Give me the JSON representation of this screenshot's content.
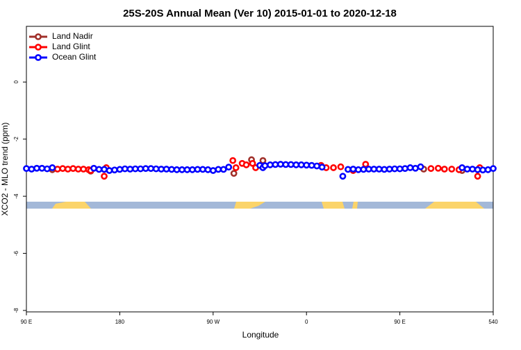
{
  "chart_data": {
    "type": "scatter",
    "title": "25S-20S Annual Mean (Ver 10)   2015-01-01 to 2020-12-18",
    "x_label": "Longitude",
    "y_label": "XCO2 - MLO trend (ppm)",
    "xlim": [
      90,
      540
    ],
    "xticks": [
      {
        "value": 90,
        "label": "90 E"
      },
      180,
      {
        "value": 270,
        "label": "90 W"
      },
      {
        "value": 360,
        "label": "0"
      },
      {
        "value": 450,
        "label": "90 E"
      },
      540
    ],
    "ylim": [
      -8.05,
      1.95
    ],
    "yticks": [
      0,
      -2,
      -4,
      -6,
      -8
    ],
    "legend": "top-left",
    "series": [
      {
        "name": "Land Nadir",
        "color": "#a0302a",
        "x": [
          115,
          152,
          290,
          307,
          318,
          473,
          510
        ],
        "values": [
          -3.07,
          -3.12,
          -3.2,
          -2.72,
          -2.75,
          -3.05,
          -3.1
        ]
      },
      {
        "name": "Land Glint",
        "color": "#ff0000",
        "x": [
          120,
          125,
          130,
          135,
          140,
          145,
          150,
          152,
          165,
          167,
          289,
          292,
          298,
          302,
          308,
          311,
          374,
          379,
          386,
          393,
          405,
          417,
          480,
          487,
          493,
          500,
          507,
          525,
          527
        ],
        "values": [
          -3.05,
          -3.03,
          -3.05,
          -3.03,
          -3.05,
          -3.05,
          -3.07,
          -3.1,
          -3.3,
          -3.0,
          -2.75,
          -3.0,
          -2.85,
          -2.9,
          -2.85,
          -3.0,
          -2.92,
          -3.0,
          -3.0,
          -2.97,
          -3.1,
          -2.88,
          -3.03,
          -3.02,
          -3.05,
          -3.05,
          -3.07,
          -3.3,
          -3.0
        ]
      },
      {
        "name": "Ocean Glint",
        "color": "#0000ff",
        "x": [
          90,
          95,
          100,
          105,
          110,
          115,
          155,
          160,
          165,
          170,
          175,
          180,
          185,
          190,
          195,
          200,
          205,
          210,
          215,
          220,
          225,
          230,
          235,
          240,
          245,
          250,
          255,
          260,
          265,
          270,
          275,
          280,
          285,
          315,
          318,
          320,
          325,
          330,
          335,
          340,
          345,
          350,
          355,
          360,
          365,
          370,
          375,
          395,
          400,
          405,
          410,
          415,
          420,
          425,
          430,
          435,
          440,
          445,
          450,
          455,
          460,
          465,
          470,
          510,
          515,
          520,
          525,
          530,
          535,
          540
        ],
        "values": [
          -3.03,
          -3.05,
          -3.02,
          -3.02,
          -3.04,
          -3.0,
          -3.02,
          -3.06,
          -3.06,
          -3.1,
          -3.08,
          -3.06,
          -3.04,
          -3.05,
          -3.04,
          -3.04,
          -3.03,
          -3.03,
          -3.04,
          -3.05,
          -3.05,
          -3.06,
          -3.07,
          -3.07,
          -3.07,
          -3.07,
          -3.06,
          -3.06,
          -3.07,
          -3.1,
          -3.06,
          -3.06,
          -2.98,
          -2.92,
          -3.0,
          -2.93,
          -2.9,
          -2.89,
          -2.88,
          -2.89,
          -2.89,
          -2.9,
          -2.9,
          -2.91,
          -2.92,
          -2.94,
          -2.98,
          -3.3,
          -3.06,
          -3.05,
          -3.07,
          -3.06,
          -3.05,
          -3.05,
          -3.05,
          -3.06,
          -3.05,
          -3.04,
          -3.04,
          -3.03,
          -3.0,
          -3.02,
          -2.97,
          -3.0,
          -3.05,
          -3.05,
          -3.07,
          -3.08,
          -3.07,
          -3.03
        ]
      }
    ]
  }
}
